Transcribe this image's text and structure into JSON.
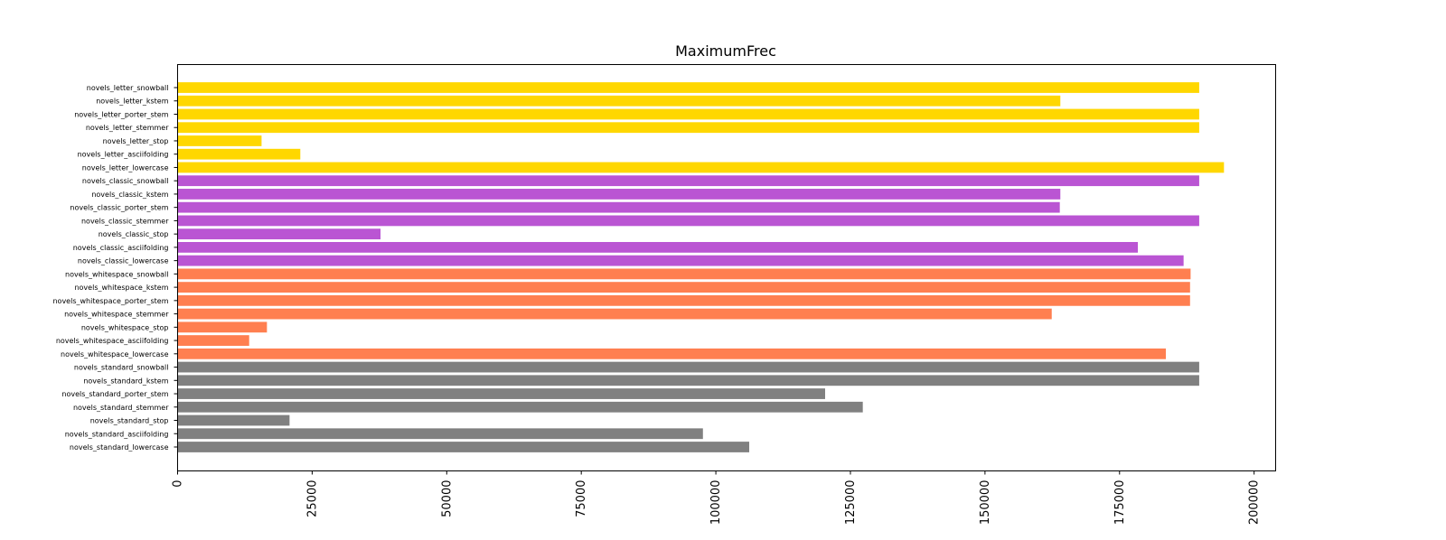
{
  "chart_data": {
    "type": "bar",
    "orientation": "horizontal",
    "title": "MaximumFrec",
    "xlabel": "",
    "ylabel": "",
    "xlim": [
      0,
      204000
    ],
    "x_ticks": [
      0,
      25000,
      50000,
      75000,
      100000,
      125000,
      150000,
      175000,
      200000
    ],
    "x_tick_labels": [
      "0",
      "25000",
      "50000",
      "75000",
      "100000",
      "125000",
      "150000",
      "175000",
      "200000"
    ],
    "grid": false,
    "categories": [
      "novels_letter_snowball",
      "novels_letter_kstem",
      "novels_letter_porter_stem",
      "novels_letter_stemmer",
      "novels_letter_stop",
      "novels_letter_asciifolding",
      "novels_letter_lowercase",
      "novels_classic_snowball",
      "novels_classic_kstem",
      "novels_classic_porter_stem",
      "novels_classic_stemmer",
      "novels_classic_stop",
      "novels_classic_asciifolding",
      "novels_classic_lowercase",
      "novels_whitespace_snowball",
      "novels_whitespace_kstem",
      "novels_whitespace_porter_stem",
      "novels_whitespace_stemmer",
      "novels_whitespace_stop",
      "novels_whitespace_asciifolding",
      "novels_whitespace_lowercase",
      "novels_standard_snowball",
      "novels_standard_kstem",
      "novels_standard_porter_stem",
      "novels_standard_stemmer",
      "novels_standard_stop",
      "novels_standard_asciifolding",
      "novels_standard_lowercase"
    ],
    "values": [
      189800,
      164000,
      189800,
      189800,
      15600,
      22800,
      194400,
      189800,
      164000,
      163900,
      189800,
      37700,
      178400,
      186900,
      188200,
      188100,
      188100,
      162400,
      16600,
      13300,
      183600,
      189800,
      189800,
      120300,
      127300,
      20800,
      97600,
      106200
    ],
    "bar_colors": [
      "#ffd700",
      "#ffd700",
      "#ffd700",
      "#ffd700",
      "#ffd700",
      "#ffd700",
      "#ffd700",
      "#ba55d3",
      "#ba55d3",
      "#ba55d3",
      "#ba55d3",
      "#ba55d3",
      "#ba55d3",
      "#ba55d3",
      "#ff7f50",
      "#ff7f50",
      "#ff7f50",
      "#ff7f50",
      "#ff7f50",
      "#ff7f50",
      "#ff7f50",
      "#808080",
      "#808080",
      "#808080",
      "#808080",
      "#808080",
      "#808080",
      "#808080"
    ]
  }
}
